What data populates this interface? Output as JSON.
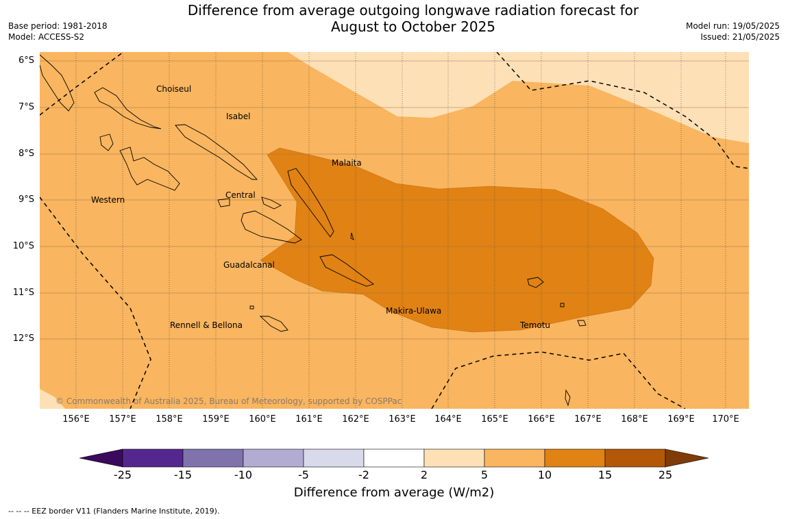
{
  "title_line1": "Difference from average outgoing longwave radiation forecast for",
  "title_line2": "August to October 2025",
  "base_period": "Base period: 1981-2018",
  "model": "Model: ACCESS-S2",
  "model_run": "Model run: 19/05/2025",
  "issued": "Issued: 21/05/2025",
  "lat_labels": [
    "6°S",
    "7°S",
    "8°S",
    "9°S",
    "10°S",
    "11°S",
    "12°S"
  ],
  "lon_labels": [
    "156°E",
    "157°E",
    "158°E",
    "159°E",
    "160°E",
    "161°E",
    "162°E",
    "163°E",
    "164°E",
    "165°E",
    "166°E",
    "167°E",
    "168°E",
    "169°E",
    "170°E"
  ],
  "places": {
    "choiseul": "Choiseul",
    "isabel": "Isabel",
    "malaita": "Malaita",
    "western": "Western",
    "central": "Central",
    "guadalcanal": "Guadalcanal",
    "makira": "Makira-Ulawa",
    "rennell": "Rennell & Bellona",
    "temotu": "Temotu"
  },
  "copyright": "© Commonwealth of Australia 2025, Bureau of Meteorology, supported by COSPPac",
  "colorbar": {
    "label": "Difference from average (W/m2)",
    "ticks": [
      "-25",
      "-15",
      "-10",
      "-5",
      "-2",
      "2",
      "5",
      "10",
      "15",
      "25"
    ],
    "colors": [
      "#3b0a5c",
      "#54278f",
      "#8073ac",
      "#b2abd2",
      "#d8daeb",
      "#ffffff",
      "#fee0b6",
      "#f9b55f",
      "#e08214",
      "#b35806",
      "#7f3b08"
    ]
  },
  "eez_note": "--  --  -- EEZ border V11 (Flanders Marine Institute, 2019).",
  "map_colors": {
    "band_2_5": "#fee0b6",
    "band_5_10": "#f9b55f",
    "band_10_15": "#e08214"
  }
}
